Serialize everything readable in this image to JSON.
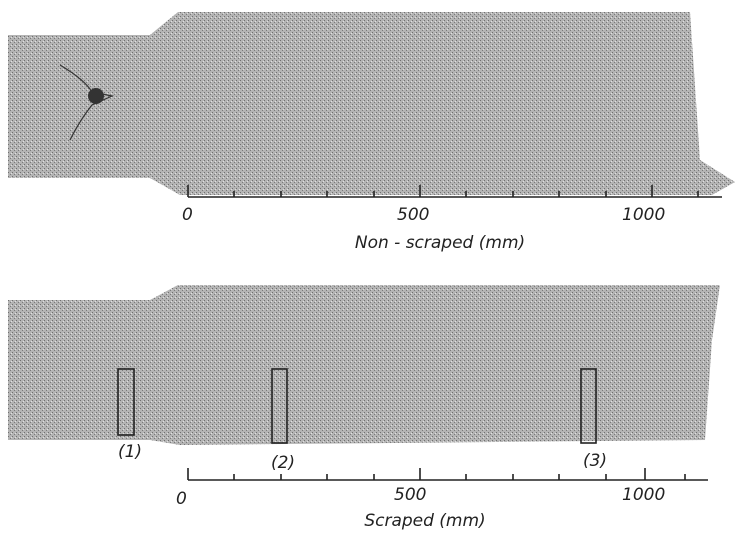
{
  "panels": [
    {
      "scale_labels": [
        "0",
        "500",
        "1000"
      ],
      "caption": "Non - scraped (mm)"
    },
    {
      "markers": [
        "(1)",
        "(2)",
        "(3)"
      ],
      "scale_labels": [
        "0",
        "500",
        "1000"
      ],
      "caption": "Scraped (mm)"
    }
  ]
}
